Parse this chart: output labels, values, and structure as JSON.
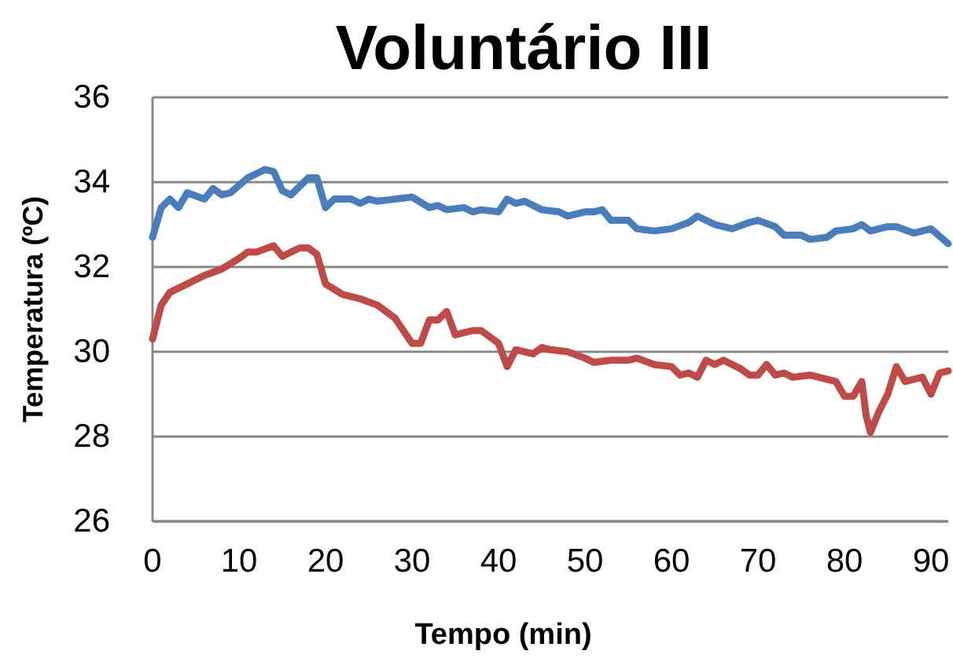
{
  "chart_data": {
    "type": "line",
    "title": "Voluntário III",
    "xlabel": "Tempo (min)",
    "ylabel": "Temperatura (ºC)",
    "xlim": [
      0,
      92
    ],
    "xticks": [
      0,
      10,
      20,
      30,
      40,
      50,
      60,
      70,
      80,
      90
    ],
    "ylim": [
      26,
      36
    ],
    "yticks": [
      26,
      28,
      30,
      32,
      34,
      36
    ],
    "grid": "y",
    "marker": "none",
    "line_style": "solid",
    "series": [
      {
        "color": "#4a7ebb",
        "x": [
          0,
          1,
          2,
          3,
          4,
          6,
          7,
          8,
          9,
          11,
          12,
          13,
          14,
          15,
          16,
          18,
          19,
          20,
          21,
          23,
          24,
          25,
          26,
          28,
          30,
          32,
          33,
          34,
          36,
          37,
          38,
          40,
          41,
          42,
          43,
          45,
          47,
          48,
          50,
          51,
          52,
          53,
          55,
          56,
          58,
          60,
          62,
          63,
          65,
          66,
          67,
          69,
          70,
          72,
          73,
          75,
          76,
          78,
          79,
          81,
          82,
          83,
          85,
          86,
          88,
          90,
          92
        ],
        "values": [
          32.7,
          33.4,
          33.6,
          33.4,
          33.75,
          33.6,
          33.85,
          33.7,
          33.75,
          34.1,
          34.2,
          34.3,
          34.25,
          33.8,
          33.7,
          34.1,
          34.1,
          33.4,
          33.6,
          33.6,
          33.5,
          33.6,
          33.55,
          33.6,
          33.65,
          33.4,
          33.45,
          33.35,
          33.4,
          33.3,
          33.35,
          33.3,
          33.6,
          33.5,
          33.55,
          33.35,
          33.3,
          33.2,
          33.3,
          33.3,
          33.35,
          33.1,
          33.1,
          32.9,
          32.85,
          32.9,
          33.05,
          33.2,
          33.0,
          32.95,
          32.9,
          33.05,
          33.1,
          32.95,
          32.75,
          32.75,
          32.65,
          32.7,
          32.85,
          32.9,
          33.0,
          32.85,
          32.95,
          32.95,
          32.8,
          32.9,
          32.55
        ]
      },
      {
        "color": "#be4b48",
        "x": [
          0,
          1,
          2,
          4,
          6,
          8,
          10,
          11,
          12,
          14,
          15,
          17,
          18,
          19,
          20,
          22,
          24,
          26,
          28,
          30,
          31,
          32,
          33,
          34,
          35,
          37,
          38,
          40,
          41,
          42,
          44,
          45,
          46,
          48,
          50,
          51,
          53,
          55,
          56,
          58,
          60,
          61,
          62,
          63,
          64,
          65,
          66,
          68,
          69,
          70,
          71,
          72,
          73,
          74,
          76,
          78,
          79,
          80,
          81,
          82,
          82.5,
          83,
          84,
          85,
          86,
          87,
          89,
          90,
          91,
          92
        ],
        "values": [
          30.3,
          31.1,
          31.4,
          31.6,
          31.8,
          31.95,
          32.2,
          32.35,
          32.35,
          32.5,
          32.25,
          32.45,
          32.45,
          32.3,
          31.6,
          31.35,
          31.25,
          31.1,
          30.8,
          30.2,
          30.2,
          30.75,
          30.75,
          30.95,
          30.4,
          30.5,
          30.5,
          30.2,
          29.65,
          30.05,
          29.95,
          30.1,
          30.05,
          30.0,
          29.85,
          29.75,
          29.8,
          29.8,
          29.85,
          29.7,
          29.65,
          29.45,
          29.5,
          29.4,
          29.8,
          29.7,
          29.8,
          29.6,
          29.45,
          29.45,
          29.7,
          29.45,
          29.5,
          29.4,
          29.45,
          29.35,
          29.3,
          28.95,
          28.95,
          29.3,
          28.5,
          28.1,
          28.6,
          29.0,
          29.65,
          29.3,
          29.4,
          29.0,
          29.5,
          29.55
        ]
      }
    ]
  }
}
